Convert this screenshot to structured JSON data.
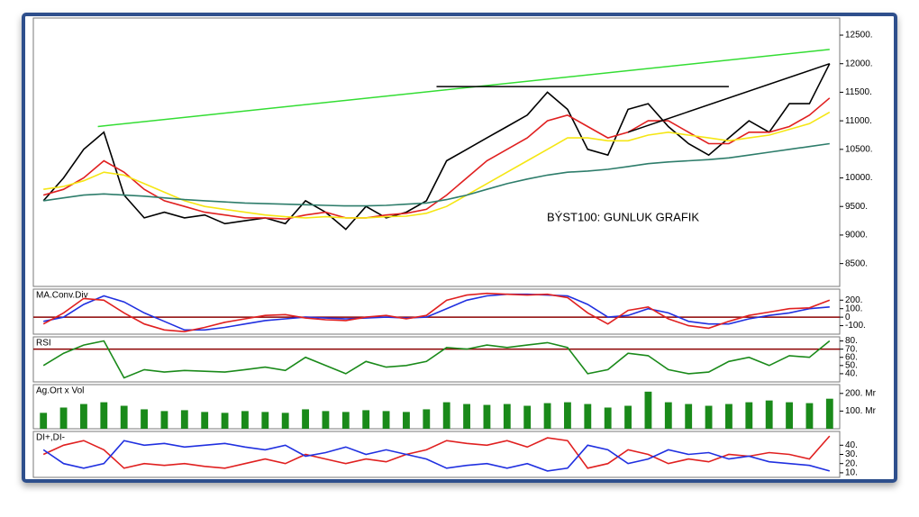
{
  "chart_data": [
    {
      "type": "line",
      "annotation": "BÝST100: GUNLUK GRAFIK",
      "x": [
        0,
        1,
        2,
        3,
        4,
        5,
        6,
        7,
        8,
        9,
        10,
        11,
        12,
        13,
        14,
        15,
        16,
        17,
        18,
        19,
        20,
        21,
        22,
        23,
        24,
        25,
        26,
        27,
        28,
        29,
        30,
        31,
        32,
        33,
        34,
        35,
        36,
        37,
        38,
        39
      ],
      "xlim": [
        -0.5,
        39.5
      ],
      "ylim": [
        8100,
        12800
      ],
      "yticks": [
        {
          "value": 8500,
          "label": "8500."
        },
        {
          "value": 9000,
          "label": "9000."
        },
        {
          "value": 9500,
          "label": "9500."
        },
        {
          "value": 10000,
          "label": "10000."
        },
        {
          "value": 10500,
          "label": "10500."
        },
        {
          "value": 11000,
          "label": "11000."
        },
        {
          "value": 11500,
          "label": "11500."
        },
        {
          "value": 12000,
          "label": "12000."
        },
        {
          "value": 12500,
          "label": "12500."
        }
      ],
      "series": [
        {
          "color": "#000000",
          "values": [
            9600,
            10000,
            10500,
            10800,
            9700,
            9300,
            9400,
            9300,
            9350,
            9200,
            9250,
            9300,
            9200,
            9600,
            9400,
            9100,
            9500,
            9300,
            9400,
            9600,
            10300,
            10500,
            10700,
            10900,
            11100,
            11500,
            11200,
            10500,
            10400,
            11200,
            11300,
            10900,
            10600,
            10400,
            10700,
            11000,
            10800,
            11300,
            11300,
            12000
          ]
        },
        {
          "color": "#e02020",
          "values": [
            9700,
            9800,
            10000,
            10300,
            10100,
            9800,
            9600,
            9500,
            9400,
            9350,
            9300,
            9300,
            9280,
            9350,
            9400,
            9300,
            9300,
            9350,
            9380,
            9450,
            9700,
            10000,
            10300,
            10500,
            10700,
            11000,
            11100,
            10900,
            10700,
            10800,
            11000,
            11000,
            10800,
            10600,
            10600,
            10800,
            10800,
            10900,
            11100,
            11400
          ]
        },
        {
          "color": "#f5e614",
          "values": [
            9800,
            9850,
            9950,
            10100,
            10050,
            9900,
            9750,
            9600,
            9500,
            9450,
            9400,
            9350,
            9320,
            9300,
            9320,
            9300,
            9300,
            9320,
            9330,
            9380,
            9500,
            9700,
            9900,
            10100,
            10300,
            10500,
            10700,
            10700,
            10650,
            10650,
            10750,
            10800,
            10750,
            10700,
            10650,
            10700,
            10750,
            10850,
            10950,
            11150
          ]
        },
        {
          "color": "#2e7d6b",
          "values": [
            9600,
            9650,
            9700,
            9720,
            9700,
            9680,
            9650,
            9620,
            9600,
            9580,
            9560,
            9550,
            9540,
            9530,
            9520,
            9510,
            9510,
            9520,
            9540,
            9560,
            9620,
            9700,
            9800,
            9900,
            9980,
            10050,
            10100,
            10120,
            10150,
            10200,
            10250,
            10280,
            10300,
            10320,
            10350,
            10400,
            10450,
            10500,
            10550,
            10600
          ]
        }
      ],
      "lines": [
        {
          "color": "#33dd33",
          "x": [
            2.7,
            39
          ],
          "y": [
            10900,
            12250
          ]
        },
        {
          "color": "#000000",
          "x": [
            19.5,
            34
          ],
          "y": [
            11600,
            11600
          ]
        },
        {
          "color": "#000000",
          "x": [
            29,
            39
          ],
          "y": [
            10800,
            12000
          ]
        }
      ]
    },
    {
      "type": "line",
      "title": "MA.Conv.Div",
      "x": [
        0,
        1,
        2,
        3,
        4,
        5,
        6,
        7,
        8,
        9,
        10,
        11,
        12,
        13,
        14,
        15,
        16,
        17,
        18,
        19,
        20,
        21,
        22,
        23,
        24,
        25,
        26,
        27,
        28,
        29,
        30,
        31,
        32,
        33,
        34,
        35,
        36,
        37,
        38,
        39
      ],
      "xlim": [
        -0.5,
        39.5
      ],
      "ylim": [
        -200,
        330
      ],
      "yticks": [
        {
          "value": -100,
          "label": "-100."
        },
        0,
        {
          "value": 100,
          "label": "100."
        },
        {
          "value": 200,
          "label": "200."
        }
      ],
      "hlines": [
        {
          "value": 0,
          "color": "#8b0000"
        }
      ],
      "series": [
        {
          "color": "#2030e0",
          "values": [
            -50,
            0,
            150,
            250,
            180,
            50,
            -50,
            -150,
            -150,
            -120,
            -80,
            -40,
            -20,
            0,
            -10,
            -20,
            -10,
            0,
            -10,
            0,
            100,
            200,
            250,
            270,
            270,
            260,
            250,
            150,
            0,
            20,
            100,
            50,
            -50,
            -80,
            -80,
            -20,
            20,
            50,
            100,
            120
          ]
        },
        {
          "color": "#e02020",
          "values": [
            -80,
            50,
            220,
            200,
            50,
            -80,
            -150,
            -170,
            -120,
            -60,
            -20,
            20,
            30,
            -10,
            -30,
            -40,
            0,
            20,
            -20,
            20,
            200,
            260,
            280,
            270,
            260,
            270,
            230,
            50,
            -80,
            80,
            120,
            -20,
            -100,
            -130,
            -50,
            20,
            60,
            100,
            110,
            200
          ]
        }
      ]
    },
    {
      "type": "line",
      "title": "RSI",
      "x": [
        0,
        1,
        2,
        3,
        4,
        5,
        6,
        7,
        8,
        9,
        10,
        11,
        12,
        13,
        14,
        15,
        16,
        17,
        18,
        19,
        20,
        21,
        22,
        23,
        24,
        25,
        26,
        27,
        28,
        29,
        30,
        31,
        32,
        33,
        34,
        35,
        36,
        37,
        38,
        39
      ],
      "xlim": [
        -0.5,
        39.5
      ],
      "ylim": [
        30,
        85
      ],
      "yticks": [
        {
          "value": 40,
          "label": "40."
        },
        {
          "value": 50,
          "label": "50."
        },
        {
          "value": 60,
          "label": "60."
        },
        {
          "value": 70,
          "label": "70."
        },
        {
          "value": 80,
          "label": "80."
        }
      ],
      "hlines": [
        {
          "value": 70,
          "color": "#8b0000"
        }
      ],
      "series": [
        {
          "color": "#1a8a1a",
          "values": [
            50,
            65,
            75,
            80,
            35,
            45,
            42,
            44,
            43,
            42,
            45,
            48,
            44,
            60,
            50,
            40,
            55,
            48,
            50,
            55,
            72,
            70,
            75,
            72,
            75,
            78,
            72,
            40,
            45,
            65,
            62,
            45,
            40,
            42,
            55,
            60,
            50,
            62,
            60,
            80
          ]
        }
      ]
    },
    {
      "type": "bar",
      "title": "Ag.Ort x Vol",
      "x": [
        0,
        1,
        2,
        3,
        4,
        5,
        6,
        7,
        8,
        9,
        10,
        11,
        12,
        13,
        14,
        15,
        16,
        17,
        18,
        19,
        20,
        21,
        22,
        23,
        24,
        25,
        26,
        27,
        28,
        29,
        30,
        31,
        32,
        33,
        34,
        35,
        36,
        37,
        38,
        39
      ],
      "xlim": [
        -0.5,
        39.5
      ],
      "ylim": [
        0,
        250
      ],
      "yticks": [
        {
          "value": 100,
          "label": "100. Mr"
        },
        {
          "value": 200,
          "label": "200. Mr"
        }
      ],
      "series": [
        {
          "color": "#1a8a1a",
          "values": [
            90,
            120,
            140,
            150,
            130,
            110,
            100,
            105,
            95,
            90,
            100,
            95,
            90,
            110,
            100,
            95,
            105,
            100,
            95,
            110,
            150,
            140,
            135,
            140,
            130,
            145,
            150,
            140,
            120,
            130,
            210,
            150,
            140,
            130,
            140,
            150,
            160,
            150,
            145,
            170
          ]
        }
      ]
    },
    {
      "type": "line",
      "title": "DI+,DI-",
      "x": [
        0,
        1,
        2,
        3,
        4,
        5,
        6,
        7,
        8,
        9,
        10,
        11,
        12,
        13,
        14,
        15,
        16,
        17,
        18,
        19,
        20,
        21,
        22,
        23,
        24,
        25,
        26,
        27,
        28,
        29,
        30,
        31,
        32,
        33,
        34,
        35,
        36,
        37,
        38,
        39
      ],
      "xlim": [
        -0.5,
        39.5
      ],
      "ylim": [
        5,
        55
      ],
      "yticks": [
        {
          "value": 10,
          "label": "10."
        },
        {
          "value": 20,
          "label": "20."
        },
        {
          "value": 30,
          "label": "30."
        },
        {
          "value": 40,
          "label": "40."
        }
      ],
      "series": [
        {
          "color": "#e02020",
          "values": [
            30,
            40,
            45,
            35,
            15,
            20,
            18,
            20,
            17,
            15,
            20,
            25,
            20,
            30,
            25,
            20,
            25,
            22,
            30,
            35,
            45,
            42,
            40,
            45,
            38,
            48,
            45,
            15,
            20,
            35,
            30,
            20,
            25,
            22,
            30,
            28,
            32,
            30,
            25,
            50
          ]
        },
        {
          "color": "#2030e0",
          "values": [
            35,
            20,
            15,
            20,
            45,
            40,
            42,
            38,
            40,
            42,
            38,
            35,
            40,
            28,
            32,
            38,
            30,
            35,
            30,
            25,
            15,
            18,
            20,
            15,
            20,
            12,
            15,
            40,
            35,
            20,
            25,
            35,
            30,
            32,
            25,
            28,
            22,
            20,
            18,
            12
          ]
        }
      ]
    }
  ]
}
